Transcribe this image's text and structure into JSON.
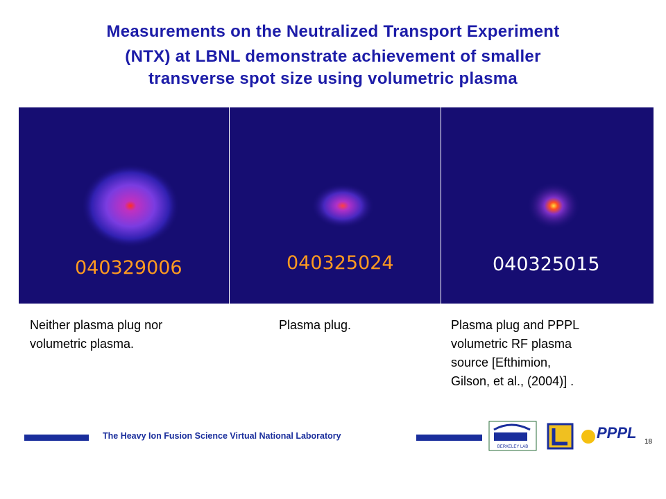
{
  "slide": {
    "title_lines": [
      "Measurements on the Neutralized Transport Experiment",
      "(NTX) at LBNL demonstrate achievement of smaller",
      "transverse spot size using volumetric plasma"
    ],
    "panels": [
      {
        "shot": "040329006",
        "caption_lines": [
          "Neither plasma plug nor",
          "volumetric plasma."
        ]
      },
      {
        "shot": "040325024",
        "caption_lines": [
          "Plasma plug."
        ]
      },
      {
        "shot": "040325015",
        "caption_lines": [
          "Plasma plug and PPPL",
          "volumetric RF plasma",
          "source [Efthimion,",
          "Gilson, et al., (2004)] ."
        ]
      }
    ],
    "footer": "The Heavy Ion Fusion Science Virtual National Laboratory",
    "logos": {
      "berkeley": "BERKELEY LAB",
      "pppl": "PPPL"
    },
    "page_number": "18"
  }
}
